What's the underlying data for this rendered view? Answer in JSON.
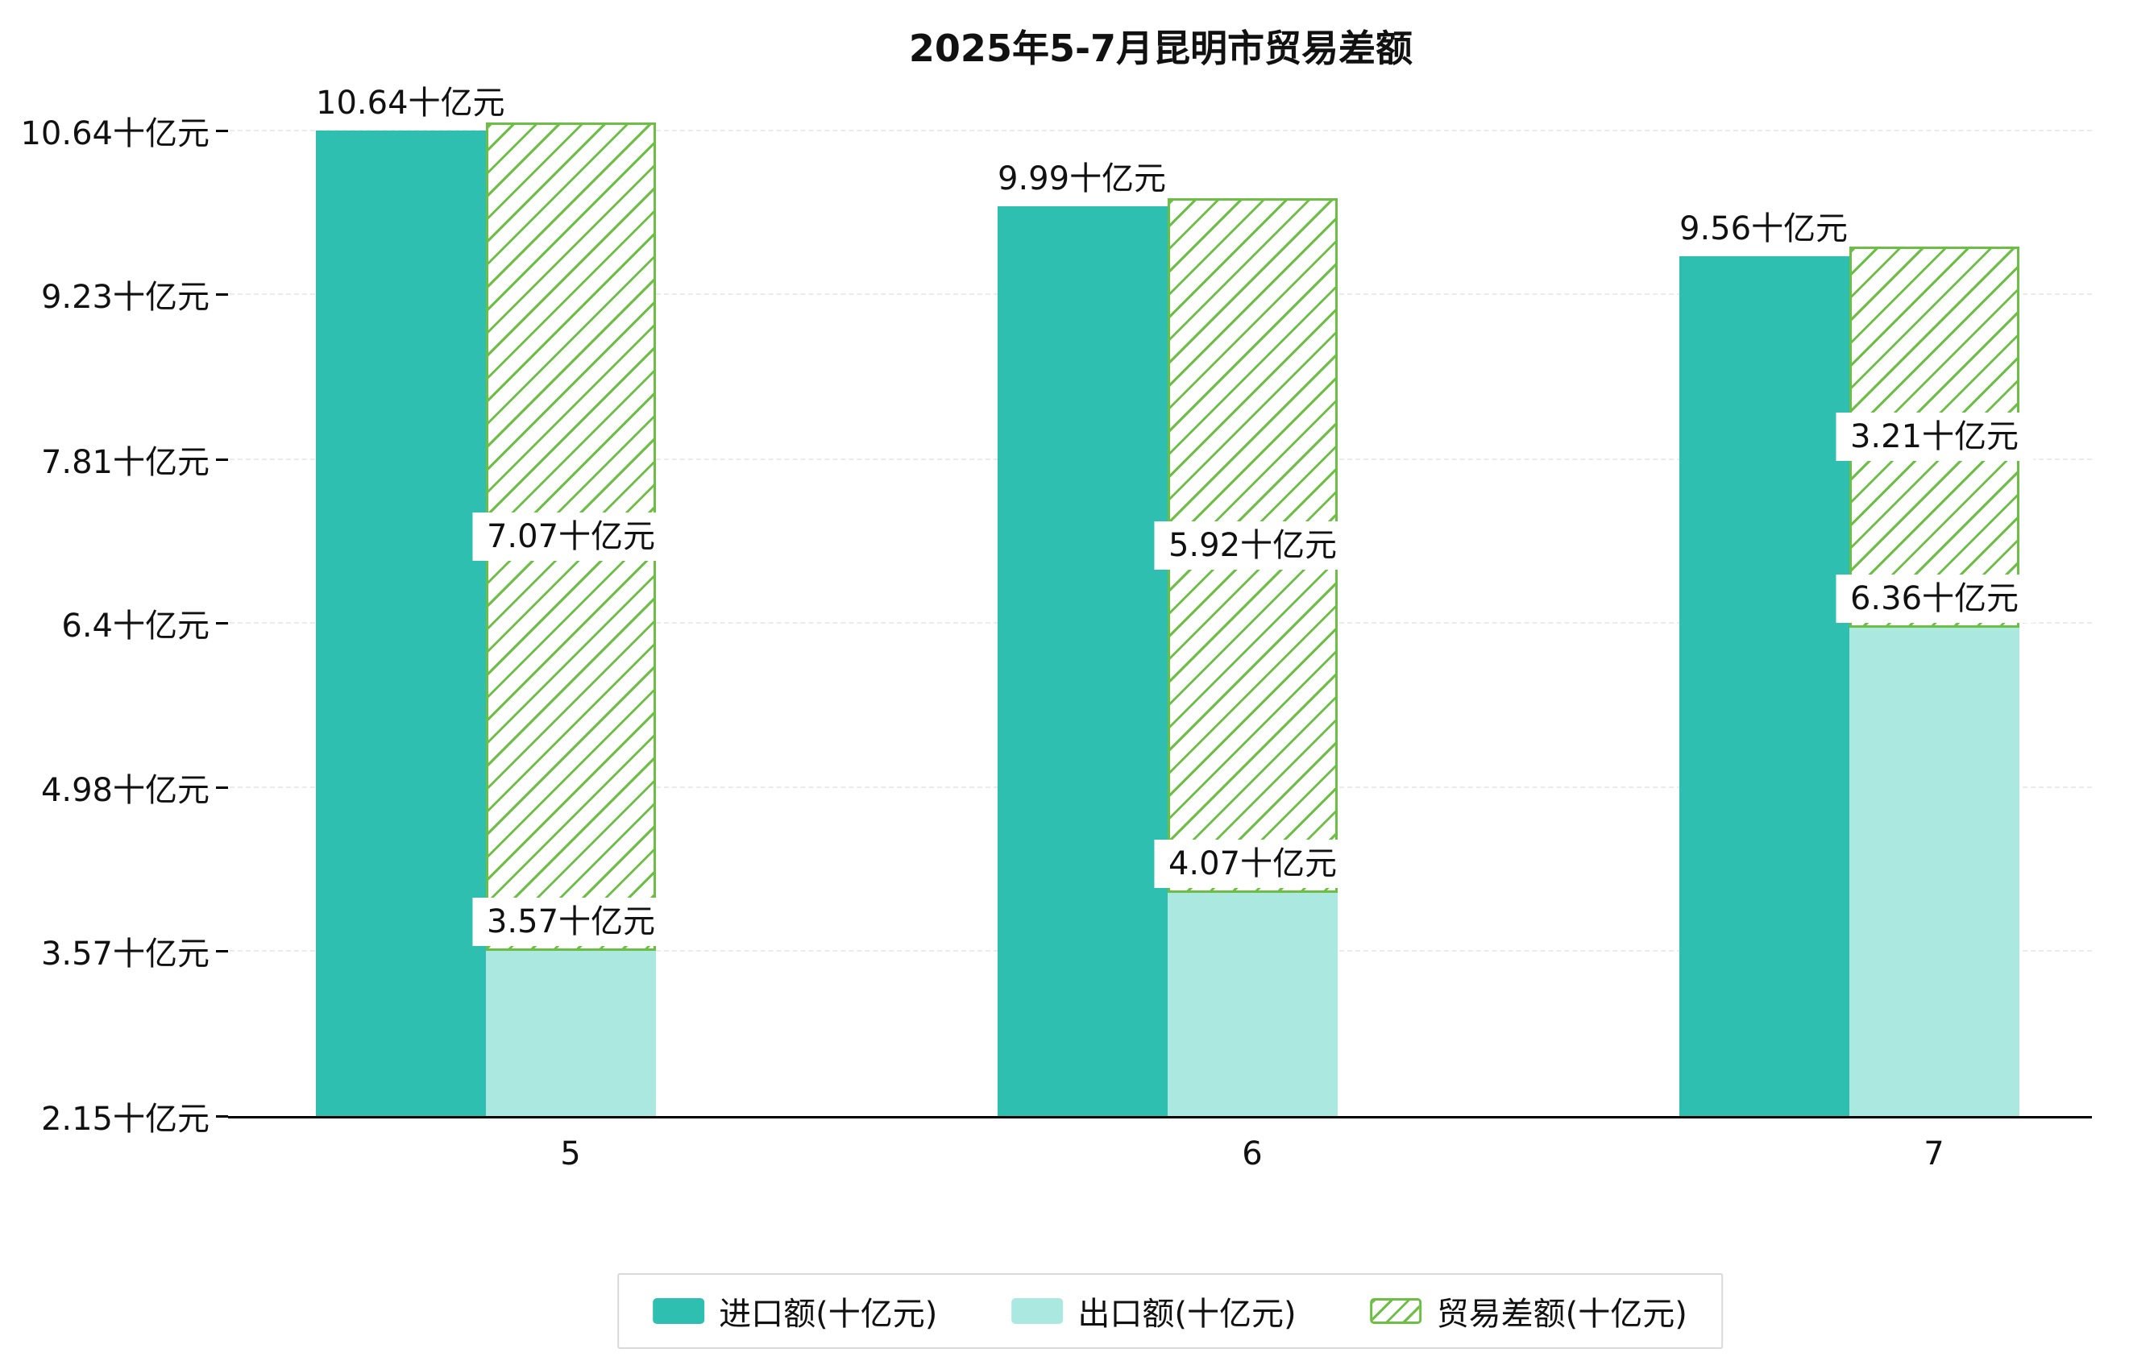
{
  "title": "2025年5-7月昆明市贸易差额",
  "chart_data": {
    "type": "bar",
    "title": "2025年5-7月昆明市贸易差额",
    "categories": [
      "5",
      "6",
      "7"
    ],
    "unit": "十亿元",
    "series": [
      {
        "name": "进口额(十亿元)",
        "role": "import",
        "style": "solid",
        "color": "#2ebfb1",
        "values": [
          10.64,
          9.99,
          9.56
        ],
        "labels": [
          "10.64十亿元",
          "9.99十亿元",
          "9.56十亿元"
        ]
      },
      {
        "name": "出口额(十亿元)",
        "role": "export",
        "style": "solid",
        "color": "#aae8e0",
        "values": [
          3.57,
          4.07,
          6.36
        ],
        "labels": [
          "3.57十亿元",
          "4.07十亿元",
          "6.36十亿元"
        ]
      },
      {
        "name": "贸易差额(十亿元)",
        "role": "difference",
        "style": "hatched",
        "color": "#6dbe45",
        "stacked_on": "出口额(十亿元)",
        "values": [
          7.07,
          5.92,
          3.21
        ],
        "labels": [
          "7.07十亿元",
          "5.92十亿元",
          "3.21十亿元"
        ]
      }
    ],
    "y_axis": {
      "min": 2.15,
      "max": 10.64,
      "ticks": [
        {
          "value": 10.64,
          "label": "10.64十亿元"
        },
        {
          "value": 9.23,
          "label": "9.23十亿元"
        },
        {
          "value": 7.81,
          "label": "7.81十亿元"
        },
        {
          "value": 6.4,
          "label": "6.4十亿元"
        },
        {
          "value": 4.98,
          "label": "4.98十亿元"
        },
        {
          "value": 3.57,
          "label": "3.57十亿元"
        },
        {
          "value": 2.15,
          "label": "2.15十亿元"
        }
      ]
    },
    "legend": {
      "position": "bottom",
      "entries": [
        "进口额(十亿元)",
        "出口额(十亿元)",
        "贸易差额(十亿元)"
      ]
    },
    "grid": true,
    "colors": {
      "import": "#2ebfb1",
      "export": "#aae8e0",
      "difference": "#6dbe45",
      "axis": "#000000",
      "gridline": "#ebebeb",
      "background": "#ffffff"
    }
  }
}
